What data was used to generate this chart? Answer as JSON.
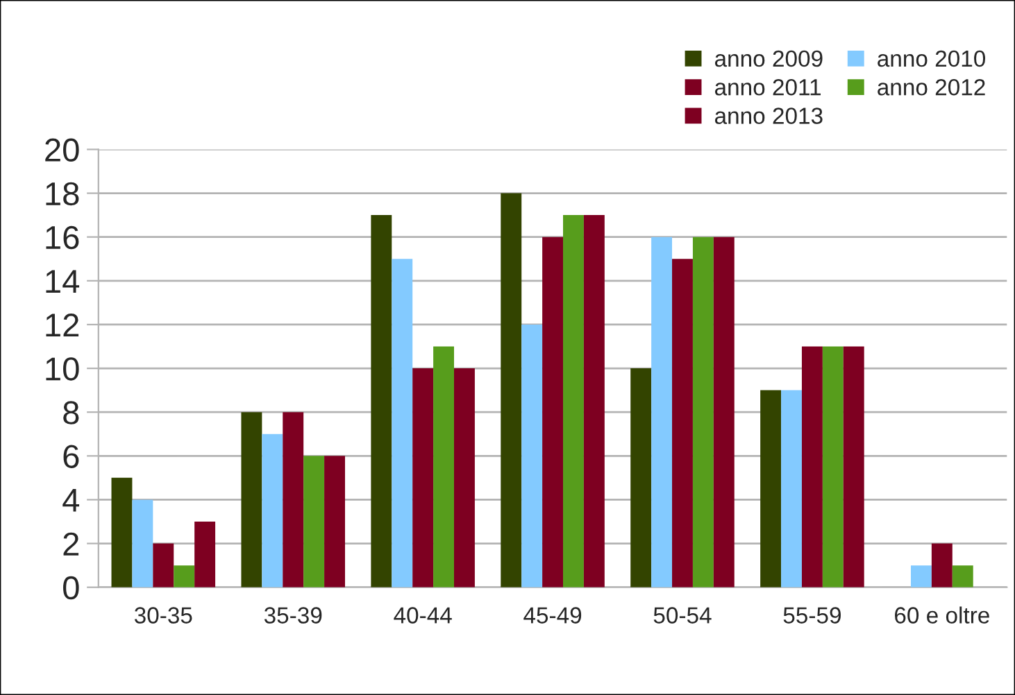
{
  "chart_data": {
    "type": "bar",
    "categories": [
      "30-35",
      "35-39",
      "40-44",
      "45-49",
      "50-54",
      "55-59",
      "60 e oltre"
    ],
    "series": [
      {
        "name": "anno 2009",
        "color": "#334400",
        "values": [
          5,
          8,
          17,
          18,
          10,
          9,
          0
        ]
      },
      {
        "name": "anno 2010",
        "color": "#83caff",
        "values": [
          4,
          7,
          15,
          12,
          16,
          9,
          1
        ]
      },
      {
        "name": "anno 2011",
        "color": "#7e0021",
        "values": [
          2,
          8,
          10,
          16,
          15,
          11,
          2
        ]
      },
      {
        "name": "anno 2012",
        "color": "#579d1c",
        "values": [
          1,
          6,
          11,
          17,
          16,
          11,
          1
        ]
      },
      {
        "name": "anno 2013",
        "color": "#7e0021",
        "values": [
          3,
          6,
          10,
          17,
          16,
          11,
          0
        ]
      }
    ],
    "ylim": [
      0,
      20
    ],
    "yticks": [
      0,
      2,
      4,
      6,
      8,
      10,
      12,
      14,
      16,
      18,
      20
    ],
    "grid": "y",
    "legend": "top right"
  }
}
